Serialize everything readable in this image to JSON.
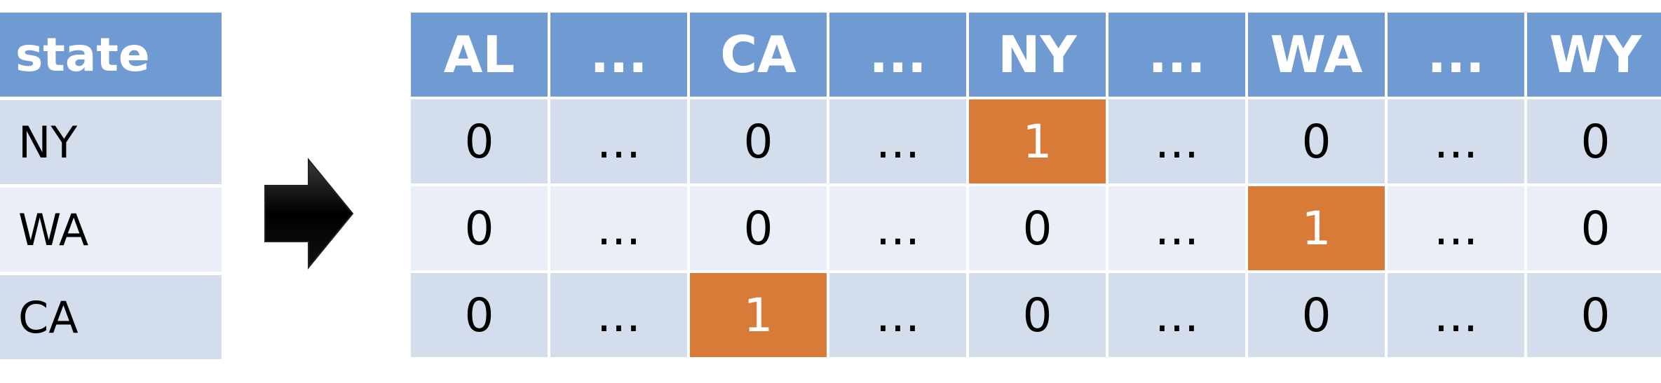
{
  "left_table": {
    "header": "state",
    "rows": [
      "NY",
      "WA",
      "CA"
    ]
  },
  "right_table": {
    "headers": [
      "AL",
      "...",
      "CA",
      "...",
      "NY",
      "...",
      "WA",
      "...",
      "WY"
    ],
    "rows": [
      [
        "0",
        "...",
        "0",
        "...",
        "1",
        "...",
        "0",
        "...",
        "0"
      ],
      [
        "0",
        "...",
        "0",
        "...",
        "0",
        "...",
        "1",
        "...",
        "0"
      ],
      [
        "0",
        "...",
        "1",
        "...",
        "0",
        "...",
        "0",
        "...",
        "0"
      ]
    ]
  },
  "colors": {
    "header_bg": "#6f9bd2",
    "row_dark": "#d3ddec",
    "row_light": "#eaeef7",
    "highlight": "#d87b39",
    "arrow": "#000000"
  }
}
